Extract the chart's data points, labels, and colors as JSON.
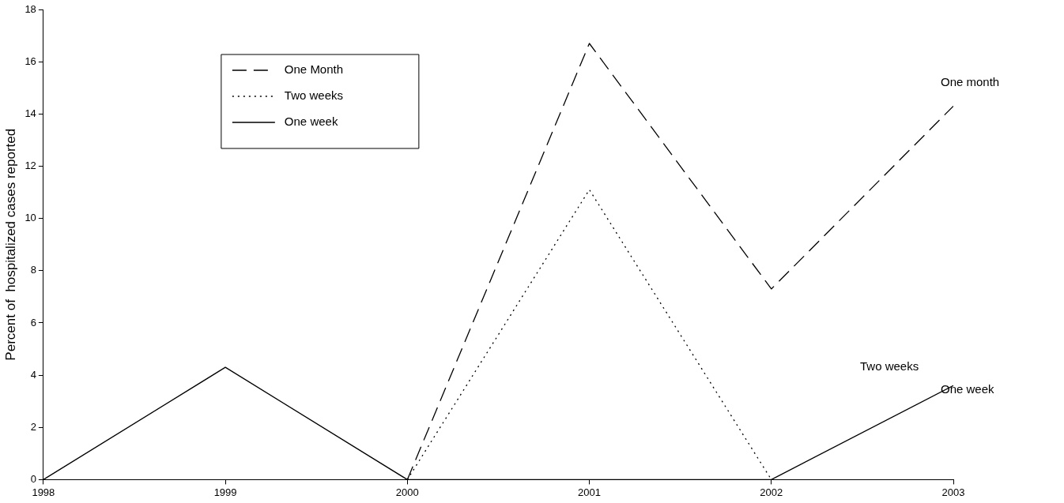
{
  "chart_data": {
    "type": "line",
    "ylabel": "Percent of  hospitalized cases reported",
    "x": [
      1998,
      1999,
      2000,
      2001,
      2002,
      2003
    ],
    "series": [
      {
        "name": "One Month",
        "color": "#000000",
        "line_style": "dashed",
        "values": [
          null,
          null,
          0,
          16.7,
          7.3,
          14.3
        ]
      },
      {
        "name": "Two weeks",
        "color": "#000000",
        "line_style": "dotted",
        "values": [
          null,
          null,
          0,
          11.1,
          0,
          null
        ]
      },
      {
        "name": "One week",
        "color": "#000000",
        "line_style": "solid",
        "values": [
          0,
          4.3,
          0,
          0,
          0,
          3.6
        ]
      }
    ],
    "xlim": [
      1998,
      2003
    ],
    "xticks": [
      1998,
      1999,
      2000,
      2001,
      2002,
      2003
    ],
    "ylim": [
      0,
      18
    ],
    "yticks": [
      0,
      2,
      4,
      6,
      8,
      10,
      12,
      14,
      16,
      18
    ],
    "annotations": [
      "One month",
      "Two weeks",
      "One week"
    ],
    "grid": false,
    "legend": "top left",
    "marker": "none"
  }
}
